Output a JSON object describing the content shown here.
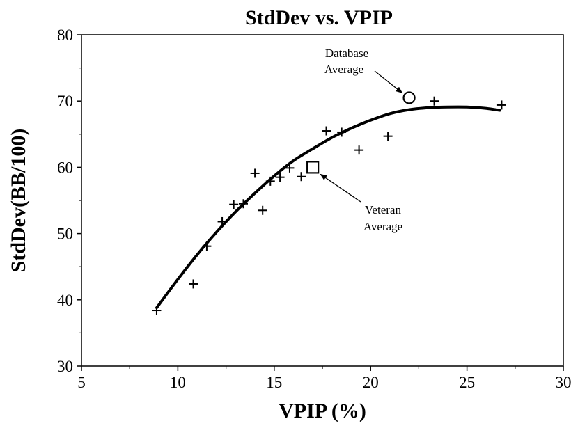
{
  "chart_data": {
    "type": "scatter",
    "title": "StdDev vs. VPIP",
    "xlabel": "VPIP (%)",
    "ylabel": "StdDev(BB/100)",
    "xlim": [
      5,
      30
    ],
    "ylim": [
      30,
      80
    ],
    "xticks": [
      "5",
      "10",
      "15",
      "20",
      "25",
      "30"
    ],
    "yticks": [
      "30",
      "40",
      "50",
      "60",
      "70",
      "80"
    ],
    "grid": false,
    "series": [
      {
        "marker": "plus",
        "points": [
          {
            "x": 8.9,
            "y": 38.4
          },
          {
            "x": 10.8,
            "y": 42.4
          },
          {
            "x": 11.5,
            "y": 48.1
          },
          {
            "x": 12.3,
            "y": 51.8
          },
          {
            "x": 12.9,
            "y": 54.4
          },
          {
            "x": 13.4,
            "y": 54.5
          },
          {
            "x": 14.0,
            "y": 59.1
          },
          {
            "x": 14.4,
            "y": 53.5
          },
          {
            "x": 14.8,
            "y": 57.9
          },
          {
            "x": 15.3,
            "y": 58.5
          },
          {
            "x": 15.8,
            "y": 59.9
          },
          {
            "x": 16.4,
            "y": 58.6
          },
          {
            "x": 17.7,
            "y": 65.5
          },
          {
            "x": 18.5,
            "y": 65.3
          },
          {
            "x": 19.4,
            "y": 62.6
          },
          {
            "x": 20.9,
            "y": 64.7
          },
          {
            "x": 23.3,
            "y": 70.0
          },
          {
            "x": 26.8,
            "y": 69.4
          }
        ]
      },
      {
        "type": "line",
        "style": "smooth",
        "x": [
          8.9,
          10,
          11,
          12,
          13,
          14,
          15,
          16,
          17,
          18,
          19,
          20,
          21,
          22,
          23,
          24,
          25,
          26,
          26.7
        ],
        "y": [
          38.8,
          43.1,
          46.8,
          50.2,
          53.3,
          56.1,
          58.7,
          61.0,
          62.8,
          64.5,
          65.9,
          67.1,
          68.1,
          68.7,
          69.0,
          69.1,
          69.1,
          68.9,
          68.6
        ]
      }
    ],
    "annotations": [
      {
        "label_lines": [
          "Database",
          "Average"
        ],
        "marker": "circle",
        "x": 22.0,
        "y": 70.5
      },
      {
        "label_lines": [
          "Veteran",
          "Average"
        ],
        "marker": "square",
        "x": 17.0,
        "y": 60.0
      }
    ]
  }
}
